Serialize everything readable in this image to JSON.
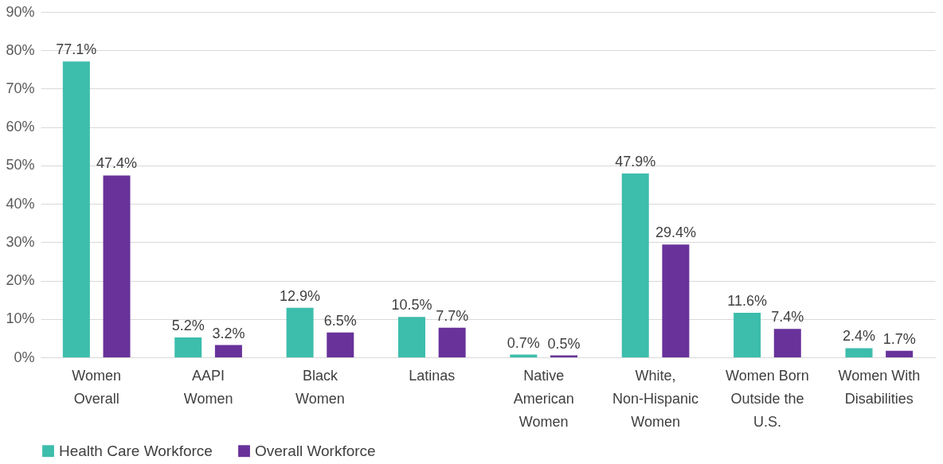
{
  "chart_data": {
    "type": "bar",
    "categories": [
      "Women\nOverall",
      "AAPI\nWomen",
      "Black\nWomen",
      "Latinas",
      "Native\nAmerican\nWomen",
      "White,\nNon-Hispanic\nWomen",
      "Women Born\nOutside the\nU.S.",
      "Women With\nDisabilities"
    ],
    "series": [
      {
        "name": "Health Care Workforce",
        "color": "#3dbdac",
        "values": [
          77.1,
          5.2,
          12.9,
          10.5,
          0.7,
          47.9,
          11.6,
          2.4
        ],
        "value_labels": [
          "77.1%",
          "5.2%",
          "12.9%",
          "10.5%",
          "0.7%",
          "47.9%",
          "11.6%",
          "2.4%"
        ]
      },
      {
        "name": "Overall Workforce",
        "color": "#68329a",
        "values": [
          47.4,
          3.2,
          6.5,
          7.7,
          0.5,
          29.4,
          7.4,
          1.7
        ],
        "value_labels": [
          "47.4%",
          "3.2%",
          "6.5%",
          "7.7%",
          "0.5%",
          "29.4%",
          "7.4%",
          "1.7%"
        ]
      }
    ],
    "ylim": [
      0,
      90
    ],
    "yticks": [
      {
        "value": 0,
        "label": "0%"
      },
      {
        "value": 10,
        "label": "10%"
      },
      {
        "value": 20,
        "label": "20%"
      },
      {
        "value": 30,
        "label": "30%"
      },
      {
        "value": 40,
        "label": "40%"
      },
      {
        "value": 50,
        "label": "50%"
      },
      {
        "value": 60,
        "label": "60%"
      },
      {
        "value": 70,
        "label": "70%"
      },
      {
        "value": 80,
        "label": "80%"
      },
      {
        "value": 90,
        "label": "90%"
      }
    ],
    "grid": "y",
    "legend": "bottom"
  }
}
